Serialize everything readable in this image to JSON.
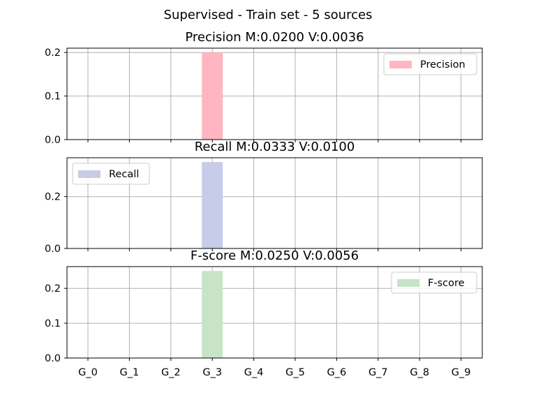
{
  "figure_title": "Supervised - Train set - 5 sources",
  "chart_data": [
    {
      "type": "bar",
      "title": "Precision M:0.0200 V:0.0036",
      "categories": [
        "G_0",
        "G_1",
        "G_2",
        "G_3",
        "G_4",
        "G_5",
        "G_6",
        "G_7",
        "G_8",
        "G_9"
      ],
      "series": [
        {
          "name": "Precision",
          "values": [
            0,
            0,
            0,
            0.2,
            0,
            0,
            0,
            0,
            0,
            0
          ],
          "color": "#ffb6c1"
        }
      ],
      "ylim": [
        0,
        0.21
      ],
      "yticks": [
        0.0,
        0.1,
        0.2
      ],
      "ytick_labels": [
        "0.0",
        "0.1",
        "0.2"
      ],
      "grid": true,
      "legend": "upper-right",
      "show_xticklabels": false
    },
    {
      "type": "bar",
      "title": "Recall M:0.0333 V:0.0100",
      "categories": [
        "G_0",
        "G_1",
        "G_2",
        "G_3",
        "G_4",
        "G_5",
        "G_6",
        "G_7",
        "G_8",
        "G_9"
      ],
      "series": [
        {
          "name": "Recall",
          "values": [
            0,
            0,
            0,
            0.3333,
            0,
            0,
            0,
            0,
            0,
            0
          ],
          "color": "#c7cce8"
        }
      ],
      "ylim": [
        0,
        0.35
      ],
      "yticks": [
        0.0,
        0.2
      ],
      "ytick_labels": [
        "0.0",
        "0.2"
      ],
      "grid": true,
      "legend": "upper-left",
      "show_xticklabels": false
    },
    {
      "type": "bar",
      "title": "F-score M:0.0250 V:0.0056",
      "categories": [
        "G_0",
        "G_1",
        "G_2",
        "G_3",
        "G_4",
        "G_5",
        "G_6",
        "G_7",
        "G_8",
        "G_9"
      ],
      "series": [
        {
          "name": "F-score",
          "values": [
            0,
            0,
            0,
            0.25,
            0,
            0,
            0,
            0,
            0,
            0
          ],
          "color": "#c7e4c7"
        }
      ],
      "ylim": [
        0,
        0.2625
      ],
      "yticks": [
        0.0,
        0.1,
        0.2
      ],
      "ytick_labels": [
        "0.0",
        "0.1",
        "0.2"
      ],
      "grid": true,
      "legend": "upper-right",
      "show_xticklabels": true
    }
  ]
}
